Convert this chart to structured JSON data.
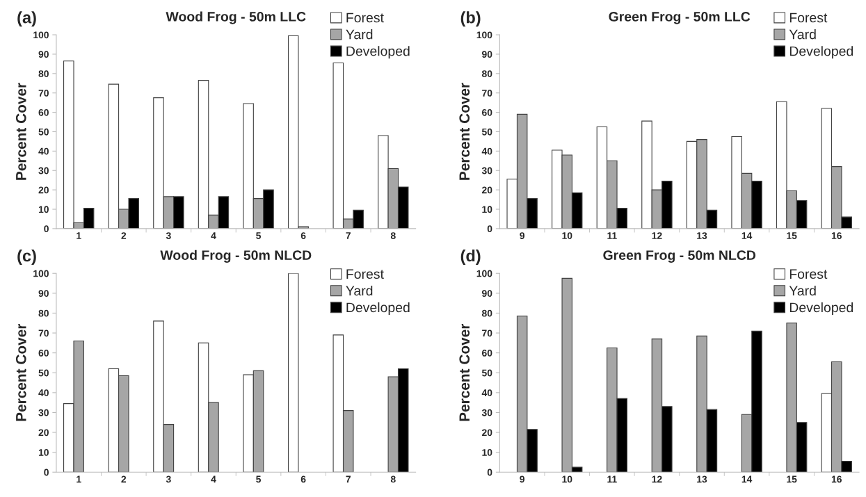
{
  "chart_data": [
    {
      "type": "bar",
      "title": "Wood Frog - 50m LLC",
      "annotations": [
        "(a)"
      ],
      "ylabel": "Percent Cover",
      "categories": [
        "1",
        "2",
        "3",
        "4",
        "5",
        "6",
        "7",
        "8"
      ],
      "ylim": [
        0,
        100
      ],
      "yticks": [
        0,
        10,
        20,
        30,
        40,
        50,
        60,
        70,
        80,
        90,
        100
      ],
      "grid": false,
      "legend": "top right",
      "series": [
        {
          "name": "Forest",
          "color": "#ffffff",
          "values": [
            86.5,
            74.5,
            67.5,
            76.5,
            64.5,
            99.5,
            85.5,
            48
          ]
        },
        {
          "name": "Yard",
          "color": "#a6a6a6",
          "values": [
            3,
            10,
            16.5,
            7,
            15.5,
            1,
            5,
            31
          ]
        },
        {
          "name": "Developed",
          "color": "#000000",
          "values": [
            10.5,
            15.5,
            16.5,
            16.5,
            20,
            null,
            9.5,
            21.5
          ]
        }
      ]
    },
    {
      "type": "bar",
      "title": "Green Frog - 50m LLC",
      "annotations": [
        "(b)"
      ],
      "ylabel": "Percent Cover",
      "categories": [
        "9",
        "10",
        "11",
        "12",
        "13",
        "14",
        "15",
        "16"
      ],
      "ylim": [
        0,
        100
      ],
      "yticks": [
        0,
        10,
        20,
        30,
        40,
        50,
        60,
        70,
        80,
        90,
        100
      ],
      "grid": false,
      "legend": "top right",
      "series": [
        {
          "name": "Forest",
          "color": "#ffffff",
          "values": [
            25.5,
            40.5,
            52.5,
            55.5,
            45,
            47.5,
            65.5,
            62
          ]
        },
        {
          "name": "Yard",
          "color": "#a6a6a6",
          "values": [
            59,
            38,
            35,
            20,
            46,
            28.5,
            19.5,
            32
          ]
        },
        {
          "name": "Developed",
          "color": "#000000",
          "values": [
            15.5,
            18.5,
            10.5,
            24.5,
            9.5,
            24.5,
            14.5,
            6
          ]
        }
      ]
    },
    {
      "type": "bar",
      "title": "Wood Frog - 50m NLCD",
      "annotations": [
        "(c)"
      ],
      "ylabel": "Percent Cover",
      "categories": [
        "1",
        "2",
        "3",
        "4",
        "5",
        "6",
        "7",
        "8"
      ],
      "ylim": [
        0,
        100
      ],
      "yticks": [
        0,
        10,
        20,
        30,
        40,
        50,
        60,
        70,
        80,
        90,
        100
      ],
      "grid": false,
      "legend": "top right",
      "series": [
        {
          "name": "Forest",
          "color": "#ffffff",
          "values": [
            34.5,
            52,
            76,
            65,
            49,
            100,
            69,
            null
          ]
        },
        {
          "name": "Yard",
          "color": "#a6a6a6",
          "values": [
            66,
            48.5,
            24,
            35,
            51,
            null,
            31,
            48
          ]
        },
        {
          "name": "Developed",
          "color": "#000000",
          "values": [
            null,
            null,
            null,
            null,
            null,
            null,
            null,
            52
          ]
        }
      ]
    },
    {
      "type": "bar",
      "title": "Green Frog - 50m NLCD",
      "annotations": [
        "(d)"
      ],
      "ylabel": "Percent Cover",
      "categories": [
        "9",
        "10",
        "11",
        "12",
        "13",
        "14",
        "15",
        "16"
      ],
      "ylim": [
        0,
        100
      ],
      "yticks": [
        0,
        10,
        20,
        30,
        40,
        50,
        60,
        70,
        80,
        90,
        100
      ],
      "grid": false,
      "legend": "top right",
      "series": [
        {
          "name": "Forest",
          "color": "#ffffff",
          "values": [
            null,
            null,
            null,
            null,
            null,
            null,
            null,
            39.5
          ]
        },
        {
          "name": "Yard",
          "color": "#a6a6a6",
          "values": [
            78.5,
            97.5,
            62.5,
            67,
            68.5,
            29,
            75,
            55.5
          ]
        },
        {
          "name": "Developed",
          "color": "#000000",
          "values": [
            21.5,
            2.5,
            37,
            33,
            31.5,
            71,
            25,
            5.5
          ]
        }
      ]
    }
  ]
}
